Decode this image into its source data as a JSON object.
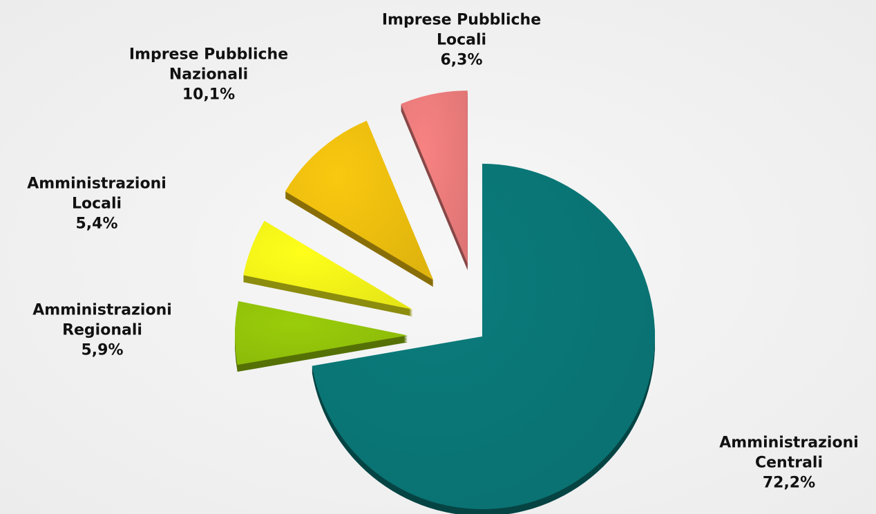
{
  "chart_data": {
    "type": "pie",
    "categories": [
      "Amministrazioni Centrali",
      "Amministrazioni Regionali",
      "Amministrazioni Locali",
      "Imprese Pubbliche Nazionali",
      "Imprese Pubbliche Locali"
    ],
    "values": [
      72.2,
      5.9,
      5.4,
      10.1,
      6.3
    ],
    "value_labels": [
      "72,2%",
      "5,9%",
      "5,4%",
      "10,1%",
      "6,3%"
    ],
    "colors": [
      "#0b7c7c",
      "#9acd0a",
      "#ffff1a",
      "#f9c80f",
      "#f88282"
    ]
  }
}
